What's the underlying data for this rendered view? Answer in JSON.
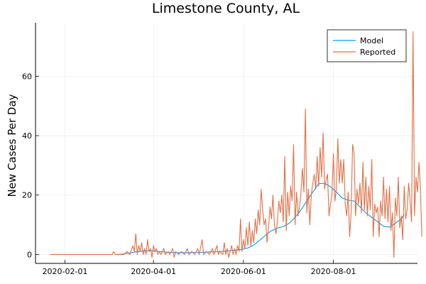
{
  "chart_data": {
    "type": "line",
    "title": "Limestone County, AL",
    "xlabel": "",
    "ylabel": "New Cases Per Day",
    "x_ticks": [
      "2020-02-01",
      "2020-04-01",
      "2020-06-01",
      "2020-08-01"
    ],
    "y_ticks": [
      0,
      20,
      40,
      60
    ],
    "xlim": [
      "2020-01-12",
      "2020-09-27"
    ],
    "ylim": [
      -3,
      78
    ],
    "grid": true,
    "legend": "top-right",
    "series": [
      {
        "name": "Model",
        "color": "#009AFA",
        "points": [
          [
            "2020-03-08",
            0.0
          ],
          [
            "2020-03-12",
            0.2
          ],
          [
            "2020-03-16",
            0.5
          ],
          [
            "2020-03-20",
            0.9
          ],
          [
            "2020-03-24",
            1.1
          ],
          [
            "2020-03-28",
            1.3
          ],
          [
            "2020-04-01",
            1.2
          ],
          [
            "2020-04-05",
            1.0
          ],
          [
            "2020-04-09",
            0.8
          ],
          [
            "2020-04-13",
            0.7
          ],
          [
            "2020-04-17",
            0.6
          ],
          [
            "2020-04-21",
            0.6
          ],
          [
            "2020-04-25",
            0.6
          ],
          [
            "2020-04-29",
            0.7
          ],
          [
            "2020-05-03",
            0.7
          ],
          [
            "2020-05-07",
            0.8
          ],
          [
            "2020-05-11",
            0.9
          ],
          [
            "2020-05-15",
            1.0
          ],
          [
            "2020-05-19",
            1.1
          ],
          [
            "2020-05-23",
            1.3
          ],
          [
            "2020-05-27",
            1.5
          ],
          [
            "2020-05-31",
            1.7
          ],
          [
            "2020-06-04",
            2.2
          ],
          [
            "2020-06-08",
            3.2
          ],
          [
            "2020-06-12",
            4.8
          ],
          [
            "2020-06-16",
            6.5
          ],
          [
            "2020-06-20",
            8.0
          ],
          [
            "2020-06-24",
            8.9
          ],
          [
            "2020-06-28",
            9.4
          ],
          [
            "2020-07-02",
            10.5
          ],
          [
            "2020-07-06",
            12.5
          ],
          [
            "2020-07-10",
            15.0
          ],
          [
            "2020-07-14",
            18.0
          ],
          [
            "2020-07-18",
            21.0
          ],
          [
            "2020-07-22",
            23.8
          ],
          [
            "2020-07-26",
            24.0
          ],
          [
            "2020-07-30",
            22.8
          ],
          [
            "2020-08-03",
            21.0
          ],
          [
            "2020-08-07",
            19.0
          ],
          [
            "2020-08-11",
            18.3
          ],
          [
            "2020-08-15",
            18.0
          ],
          [
            "2020-08-19",
            16.0
          ],
          [
            "2020-08-23",
            14.0
          ],
          [
            "2020-08-27",
            12.5
          ],
          [
            "2020-08-31",
            11.0
          ],
          [
            "2020-09-04",
            9.5
          ],
          [
            "2020-09-08",
            9.2
          ],
          [
            "2020-09-12",
            10.5
          ],
          [
            "2020-09-16",
            12.0
          ],
          [
            "2020-09-18",
            13.5
          ]
        ]
      },
      {
        "name": "Reported",
        "color": "#E26F46",
        "points": [
          [
            "2020-01-22",
            0
          ],
          [
            "2020-03-04",
            0
          ],
          [
            "2020-03-05",
            1
          ],
          [
            "2020-03-06",
            0
          ],
          [
            "2020-03-12",
            0
          ],
          [
            "2020-03-14",
            1
          ],
          [
            "2020-03-16",
            0
          ],
          [
            "2020-03-18",
            3
          ],
          [
            "2020-03-19",
            1
          ],
          [
            "2020-03-20",
            7
          ],
          [
            "2020-03-21",
            0
          ],
          [
            "2020-03-22",
            3
          ],
          [
            "2020-03-23",
            1
          ],
          [
            "2020-03-24",
            4
          ],
          [
            "2020-03-25",
            0
          ],
          [
            "2020-03-26",
            2
          ],
          [
            "2020-03-27",
            0
          ],
          [
            "2020-03-28",
            5
          ],
          [
            "2020-03-29",
            1
          ],
          [
            "2020-03-30",
            2
          ],
          [
            "2020-03-31",
            -1
          ],
          [
            "2020-04-01",
            3
          ],
          [
            "2020-04-02",
            1
          ],
          [
            "2020-04-03",
            2
          ],
          [
            "2020-04-04",
            0
          ],
          [
            "2020-04-05",
            1
          ],
          [
            "2020-04-06",
            0
          ],
          [
            "2020-04-08",
            2
          ],
          [
            "2020-04-09",
            0
          ],
          [
            "2020-04-11",
            1
          ],
          [
            "2020-04-12",
            0
          ],
          [
            "2020-04-14",
            2
          ],
          [
            "2020-04-15",
            -1
          ],
          [
            "2020-04-16",
            1
          ],
          [
            "2020-04-18",
            0
          ],
          [
            "2020-04-20",
            1
          ],
          [
            "2020-04-22",
            0
          ],
          [
            "2020-04-24",
            2
          ],
          [
            "2020-04-25",
            0
          ],
          [
            "2020-04-27",
            1
          ],
          [
            "2020-04-29",
            0
          ],
          [
            "2020-05-01",
            2
          ],
          [
            "2020-05-02",
            0
          ],
          [
            "2020-05-04",
            5
          ],
          [
            "2020-05-05",
            0
          ],
          [
            "2020-05-07",
            1
          ],
          [
            "2020-05-09",
            0
          ],
          [
            "2020-05-11",
            2
          ],
          [
            "2020-05-12",
            0
          ],
          [
            "2020-05-14",
            3
          ],
          [
            "2020-05-15",
            0
          ],
          [
            "2020-05-16",
            1
          ],
          [
            "2020-05-18",
            0
          ],
          [
            "2020-05-19",
            4
          ],
          [
            "2020-05-20",
            0
          ],
          [
            "2020-05-21",
            2
          ],
          [
            "2020-05-22",
            -1
          ],
          [
            "2020-05-23",
            1
          ],
          [
            "2020-05-24",
            3
          ],
          [
            "2020-05-25",
            0
          ],
          [
            "2020-05-26",
            2
          ],
          [
            "2020-05-27",
            0
          ],
          [
            "2020-05-28",
            3
          ],
          [
            "2020-05-29",
            1
          ],
          [
            "2020-05-30",
            12
          ],
          [
            "2020-05-31",
            1
          ],
          [
            "2020-06-01",
            5
          ],
          [
            "2020-06-02",
            2
          ],
          [
            "2020-06-03",
            9
          ],
          [
            "2020-06-04",
            3
          ],
          [
            "2020-06-05",
            11
          ],
          [
            "2020-06-06",
            3
          ],
          [
            "2020-06-07",
            8
          ],
          [
            "2020-06-08",
            4
          ],
          [
            "2020-06-09",
            12
          ],
          [
            "2020-06-10",
            7
          ],
          [
            "2020-06-11",
            15
          ],
          [
            "2020-06-12",
            10
          ],
          [
            "2020-06-13",
            22
          ],
          [
            "2020-06-14",
            15
          ],
          [
            "2020-06-15",
            10
          ],
          [
            "2020-06-16",
            12
          ],
          [
            "2020-06-17",
            4
          ],
          [
            "2020-06-18",
            9
          ],
          [
            "2020-06-19",
            16
          ],
          [
            "2020-06-20",
            12
          ],
          [
            "2020-06-21",
            20
          ],
          [
            "2020-06-22",
            10
          ],
          [
            "2020-06-23",
            7
          ],
          [
            "2020-06-24",
            11
          ],
          [
            "2020-06-25",
            18
          ],
          [
            "2020-06-26",
            14
          ],
          [
            "2020-06-27",
            20
          ],
          [
            "2020-06-28",
            11
          ],
          [
            "2020-06-29",
            33
          ],
          [
            "2020-06-30",
            8
          ],
          [
            "2020-07-01",
            21
          ],
          [
            "2020-07-02",
            13
          ],
          [
            "2020-07-03",
            23
          ],
          [
            "2020-07-04",
            18
          ],
          [
            "2020-07-05",
            37
          ],
          [
            "2020-07-06",
            10
          ],
          [
            "2020-07-07",
            21
          ],
          [
            "2020-07-08",
            13
          ],
          [
            "2020-07-09",
            16
          ],
          [
            "2020-07-10",
            21
          ],
          [
            "2020-07-11",
            29
          ],
          [
            "2020-07-12",
            21
          ],
          [
            "2020-07-13",
            49
          ],
          [
            "2020-07-14",
            14
          ],
          [
            "2020-07-15",
            22
          ],
          [
            "2020-07-16",
            10
          ],
          [
            "2020-07-17",
            20
          ],
          [
            "2020-07-18",
            24
          ],
          [
            "2020-07-19",
            27
          ],
          [
            "2020-07-20",
            22
          ],
          [
            "2020-07-21",
            33
          ],
          [
            "2020-07-22",
            23
          ],
          [
            "2020-07-23",
            36
          ],
          [
            "2020-07-24",
            26
          ],
          [
            "2020-07-25",
            41
          ],
          [
            "2020-07-26",
            22
          ],
          [
            "2020-07-27",
            25
          ],
          [
            "2020-07-28",
            27
          ],
          [
            "2020-07-29",
            13
          ],
          [
            "2020-07-30",
            17
          ],
          [
            "2020-07-31",
            20
          ],
          [
            "2020-08-01",
            34
          ],
          [
            "2020-08-02",
            18
          ],
          [
            "2020-08-03",
            22
          ],
          [
            "2020-08-04",
            39
          ],
          [
            "2020-08-05",
            24
          ],
          [
            "2020-08-06",
            32
          ],
          [
            "2020-08-07",
            24
          ],
          [
            "2020-08-08",
            32
          ],
          [
            "2020-08-09",
            17
          ],
          [
            "2020-08-10",
            13
          ],
          [
            "2020-08-11",
            21
          ],
          [
            "2020-08-12",
            6
          ],
          [
            "2020-08-13",
            14
          ],
          [
            "2020-08-14",
            37
          ],
          [
            "2020-08-15",
            34
          ],
          [
            "2020-08-16",
            13
          ],
          [
            "2020-08-17",
            22
          ],
          [
            "2020-08-18",
            17
          ],
          [
            "2020-08-19",
            24
          ],
          [
            "2020-08-20",
            14
          ],
          [
            "2020-08-21",
            31
          ],
          [
            "2020-08-22",
            15
          ],
          [
            "2020-08-23",
            26
          ],
          [
            "2020-08-24",
            13
          ],
          [
            "2020-08-25",
            23
          ],
          [
            "2020-08-26",
            15
          ],
          [
            "2020-08-27",
            32
          ],
          [
            "2020-08-28",
            6
          ],
          [
            "2020-08-29",
            17
          ],
          [
            "2020-08-30",
            14
          ],
          [
            "2020-08-31",
            16
          ],
          [
            "2020-09-01",
            6
          ],
          [
            "2020-09-02",
            18
          ],
          [
            "2020-09-03",
            13
          ],
          [
            "2020-09-04",
            26
          ],
          [
            "2020-09-05",
            12
          ],
          [
            "2020-09-06",
            22
          ],
          [
            "2020-09-07",
            11
          ],
          [
            "2020-09-08",
            23
          ],
          [
            "2020-09-09",
            8
          ],
          [
            "2020-09-10",
            14
          ],
          [
            "2020-09-11",
            -1
          ],
          [
            "2020-09-12",
            19
          ],
          [
            "2020-09-13",
            13
          ],
          [
            "2020-09-14",
            26
          ],
          [
            "2020-09-15",
            9
          ],
          [
            "2020-09-16",
            13
          ],
          [
            "2020-09-17",
            5
          ],
          [
            "2020-09-18",
            23
          ],
          [
            "2020-09-19",
            12
          ],
          [
            "2020-09-20",
            15
          ],
          [
            "2020-09-21",
            24
          ],
          [
            "2020-09-22",
            18
          ],
          [
            "2020-09-23",
            11
          ],
          [
            "2020-09-24",
            75
          ],
          [
            "2020-09-25",
            13
          ],
          [
            "2020-09-26",
            26
          ],
          [
            "2020-09-27",
            21
          ],
          [
            "2020-09-28",
            31
          ],
          [
            "2020-09-29",
            22
          ],
          [
            "2020-09-30",
            6
          ]
        ]
      }
    ]
  }
}
